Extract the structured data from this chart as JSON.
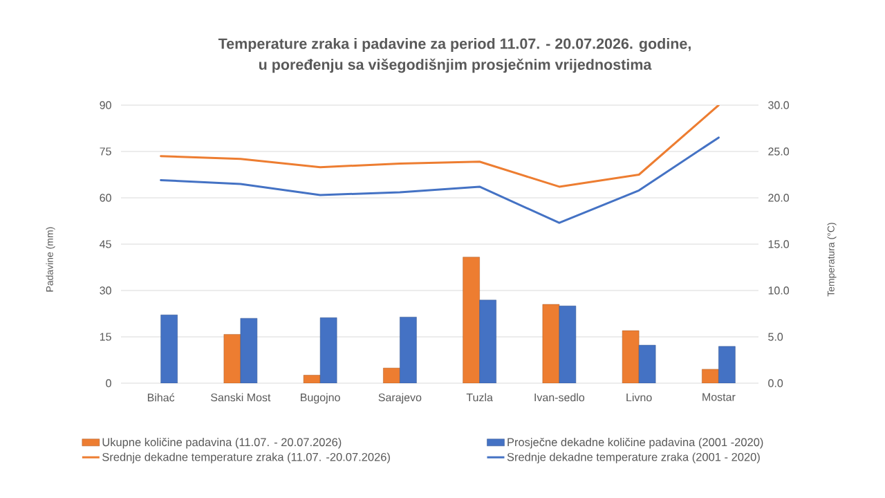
{
  "chart_data": {
    "type": "bar",
    "title": "Temperature zraka i padavine za period 11.07. - 20.07.2026. godine,",
    "subtitle": "u poređenju sa višegodišnjim prosječnim vrijednostima",
    "categories": [
      "Bihać",
      "Sanski Most",
      "Bugojno",
      "Sarajevo",
      "Tuzla",
      "Ivan-sedlo",
      "Livno",
      "Mostar"
    ],
    "ylabel": "Padavine (mm)",
    "y2label": "Temperatura (°C)",
    "series": [
      {
        "name": "Ukupne količine padavina (11.07. - 20.07.2026)",
        "color": "#ED7D31",
        "values": [
          null,
          15.8,
          2.6,
          4.9,
          40.8,
          25.5,
          17.0,
          4.5
        ]
      },
      {
        "name": "Prosječne dekadne količine padavina (2001 -2020)",
        "color": "#4472C4",
        "values": [
          22.1,
          21.0,
          21.2,
          21.4,
          26.9,
          25.0,
          12.3,
          11.9
        ]
      },
      {
        "name": "Srednje dekadne temperature zraka (11.07. -20.07.2026)",
        "type": "line",
        "axis": "y2",
        "color": "#ED7D31",
        "values": [
          24.5,
          24.2,
          23.3,
          23.7,
          23.9,
          21.2,
          22.5,
          30.0
        ]
      },
      {
        "name": "Srednje dekadne temperature zraka (2001 - 2020)",
        "type": "line",
        "axis": "y2",
        "color": "#4472C4",
        "values": [
          21.9,
          21.5,
          20.3,
          20.6,
          21.2,
          17.3,
          20.8,
          26.5
        ]
      }
    ],
    "ylim": [
      0,
      90
    ],
    "yticks": [
      0,
      15,
      30,
      45,
      60,
      75,
      90
    ],
    "y2lim": [
      0,
      30
    ],
    "y2ticks": [
      {
        "value": 0,
        "label": "0.0"
      },
      {
        "value": 5,
        "label": "5.0"
      },
      {
        "value": 10,
        "label": "10.0"
      },
      {
        "value": 15,
        "label": "15.0"
      },
      {
        "value": 20,
        "label": "20.0"
      },
      {
        "value": 25,
        "label": "25.0"
      },
      {
        "value": 30,
        "label": "30.0"
      }
    ],
    "grid": "y",
    "legend": "bottom"
  }
}
